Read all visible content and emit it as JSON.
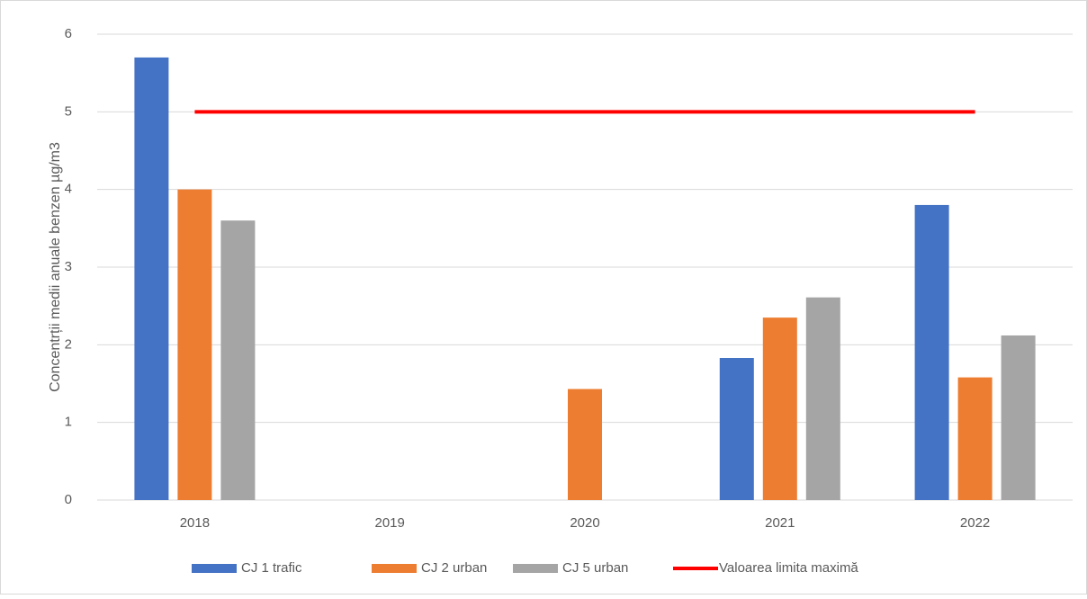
{
  "chart_data": {
    "type": "bar",
    "y_label": "Concentrții medii anuale benzen  µg/m3",
    "categories": [
      "2018",
      "2019",
      "2020",
      "2021",
      "2022"
    ],
    "series": [
      {
        "name": "CJ 1 trafic",
        "color": "#4472c4",
        "values": [
          5.7,
          null,
          null,
          1.83,
          3.8
        ]
      },
      {
        "name": "CJ 2 urban",
        "color": "#ed7d31",
        "values": [
          4.0,
          null,
          1.43,
          2.35,
          1.58
        ]
      },
      {
        "name": "CJ 5 urban",
        "color": "#a5a5a5",
        "values": [
          3.6,
          null,
          null,
          2.61,
          2.12
        ]
      },
      {
        "name": "Valoarea limita maximă",
        "color": "#ff0000",
        "type": "line",
        "values": [
          5,
          5,
          5,
          5,
          5
        ]
      }
    ],
    "ylim": [
      0,
      6
    ],
    "yticks": [
      0,
      1,
      2,
      3,
      4,
      5,
      6
    ],
    "grid": true,
    "legend": "bottom"
  }
}
